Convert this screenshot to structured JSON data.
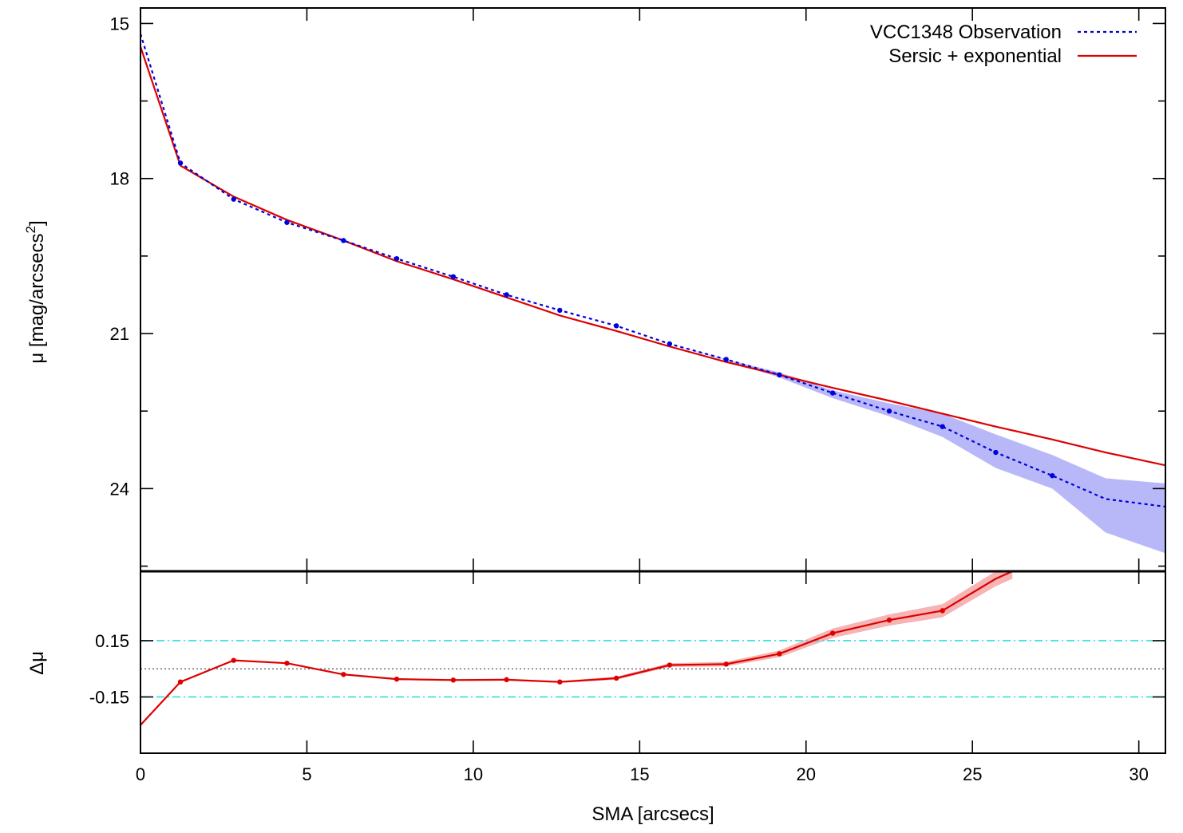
{
  "chart_data": [
    {
      "type": "line",
      "panel": "profile",
      "title": "",
      "xlabel": "",
      "ylabel": "μ [mag/arcsecs²]",
      "ylabel_main": "μ [mag/arcsecs",
      "ylabel_sup": "2",
      "ylabel_close": "]",
      "xlim": [
        0,
        30.8
      ],
      "ylim": [
        25.6,
        14.7
      ],
      "y_inverted": true,
      "yticks": [
        "15",
        "18",
        "21",
        "24"
      ],
      "ytick_values": [
        15,
        18,
        21,
        24
      ],
      "ytick_minor": [
        16.5,
        19.5,
        22.5,
        25.5
      ],
      "legend_position": "top-right",
      "series": [
        {
          "name": "VCC1348 Observation",
          "style": "dotted-markers",
          "color": "#0000dd",
          "band_color": "#b8b8f8",
          "x": [
            0.0,
            1.2,
            2.8,
            4.4,
            6.1,
            7.7,
            9.4,
            11.0,
            12.6,
            14.3,
            15.9,
            17.6,
            19.2,
            20.8,
            22.5,
            24.1,
            25.7,
            27.4,
            29.0,
            30.8
          ],
          "values": [
            15.2,
            17.7,
            18.4,
            18.85,
            19.2,
            19.55,
            19.9,
            20.25,
            20.55,
            20.85,
            21.2,
            21.5,
            21.8,
            22.15,
            22.5,
            22.8,
            23.3,
            23.75,
            24.2,
            24.35
          ],
          "band_lower": [
            15.2,
            17.7,
            18.4,
            18.85,
            19.2,
            19.55,
            19.9,
            20.25,
            20.55,
            20.85,
            21.2,
            21.5,
            21.75,
            22.1,
            22.35,
            22.55,
            22.95,
            23.35,
            23.8,
            23.9
          ],
          "band_upper": [
            15.2,
            17.7,
            18.4,
            18.85,
            19.2,
            19.55,
            19.9,
            20.25,
            20.55,
            20.85,
            21.2,
            21.52,
            21.85,
            22.25,
            22.6,
            23.0,
            23.6,
            24.0,
            24.85,
            25.25
          ],
          "marker_from_index": 1
        },
        {
          "name": "Sersic + exponential",
          "style": "solid",
          "color": "#dd0000",
          "x": [
            0.0,
            1.2,
            2.8,
            4.4,
            6.1,
            7.7,
            9.4,
            11.0,
            12.6,
            14.3,
            15.9,
            17.6,
            19.2,
            20.8,
            22.5,
            24.1,
            25.7,
            27.4,
            29.0,
            30.8
          ],
          "values": [
            15.45,
            17.75,
            18.35,
            18.8,
            19.2,
            19.6,
            19.95,
            20.3,
            20.65,
            20.95,
            21.25,
            21.55,
            21.8,
            22.05,
            22.3,
            22.55,
            22.8,
            23.05,
            23.3,
            23.55
          ]
        }
      ]
    },
    {
      "type": "line",
      "panel": "residual",
      "title": "",
      "xlabel": "SMA [arcsecs]",
      "ylabel": "Δμ",
      "xlim": [
        0,
        30.8
      ],
      "ylim": [
        -0.45,
        0.52
      ],
      "xticks": [
        "0",
        "5",
        "10",
        "15",
        "20",
        "25",
        "30"
      ],
      "xtick_values": [
        0,
        5,
        10,
        15,
        20,
        25,
        30
      ],
      "yticks": [
        "0.15",
        "-0.15"
      ],
      "ytick_values": [
        0.15,
        -0.15
      ],
      "reference_lines": [
        {
          "value": 0.15,
          "style": "dash-dot",
          "color": "#33dddd"
        },
        {
          "value": 0.0,
          "style": "dotted",
          "color": "#555555"
        },
        {
          "value": -0.15,
          "style": "dash-dot",
          "color": "#33dddd"
        }
      ],
      "series": [
        {
          "name": "",
          "style": "solid-markers",
          "color": "#dd0000",
          "band_color": "#f6b4b4",
          "x": [
            0.0,
            1.2,
            2.8,
            4.4,
            6.1,
            7.7,
            9.4,
            11.0,
            12.6,
            14.3,
            15.9,
            17.6,
            19.2,
            20.8,
            22.5,
            24.1,
            25.7,
            26.2
          ],
          "values": [
            -0.3,
            -0.07,
            0.045,
            0.03,
            -0.03,
            -0.055,
            -0.06,
            -0.058,
            -0.07,
            -0.05,
            0.02,
            0.025,
            0.08,
            0.19,
            0.26,
            0.31,
            0.48,
            0.52
          ],
          "band_half_width": [
            0,
            0,
            0,
            0,
            0,
            0.005,
            0.005,
            0.005,
            0.005,
            0.008,
            0.01,
            0.012,
            0.018,
            0.025,
            0.03,
            0.035,
            0.04,
            0.04
          ],
          "marker_from_index": 1,
          "marker_to_index": 15
        }
      ]
    }
  ]
}
